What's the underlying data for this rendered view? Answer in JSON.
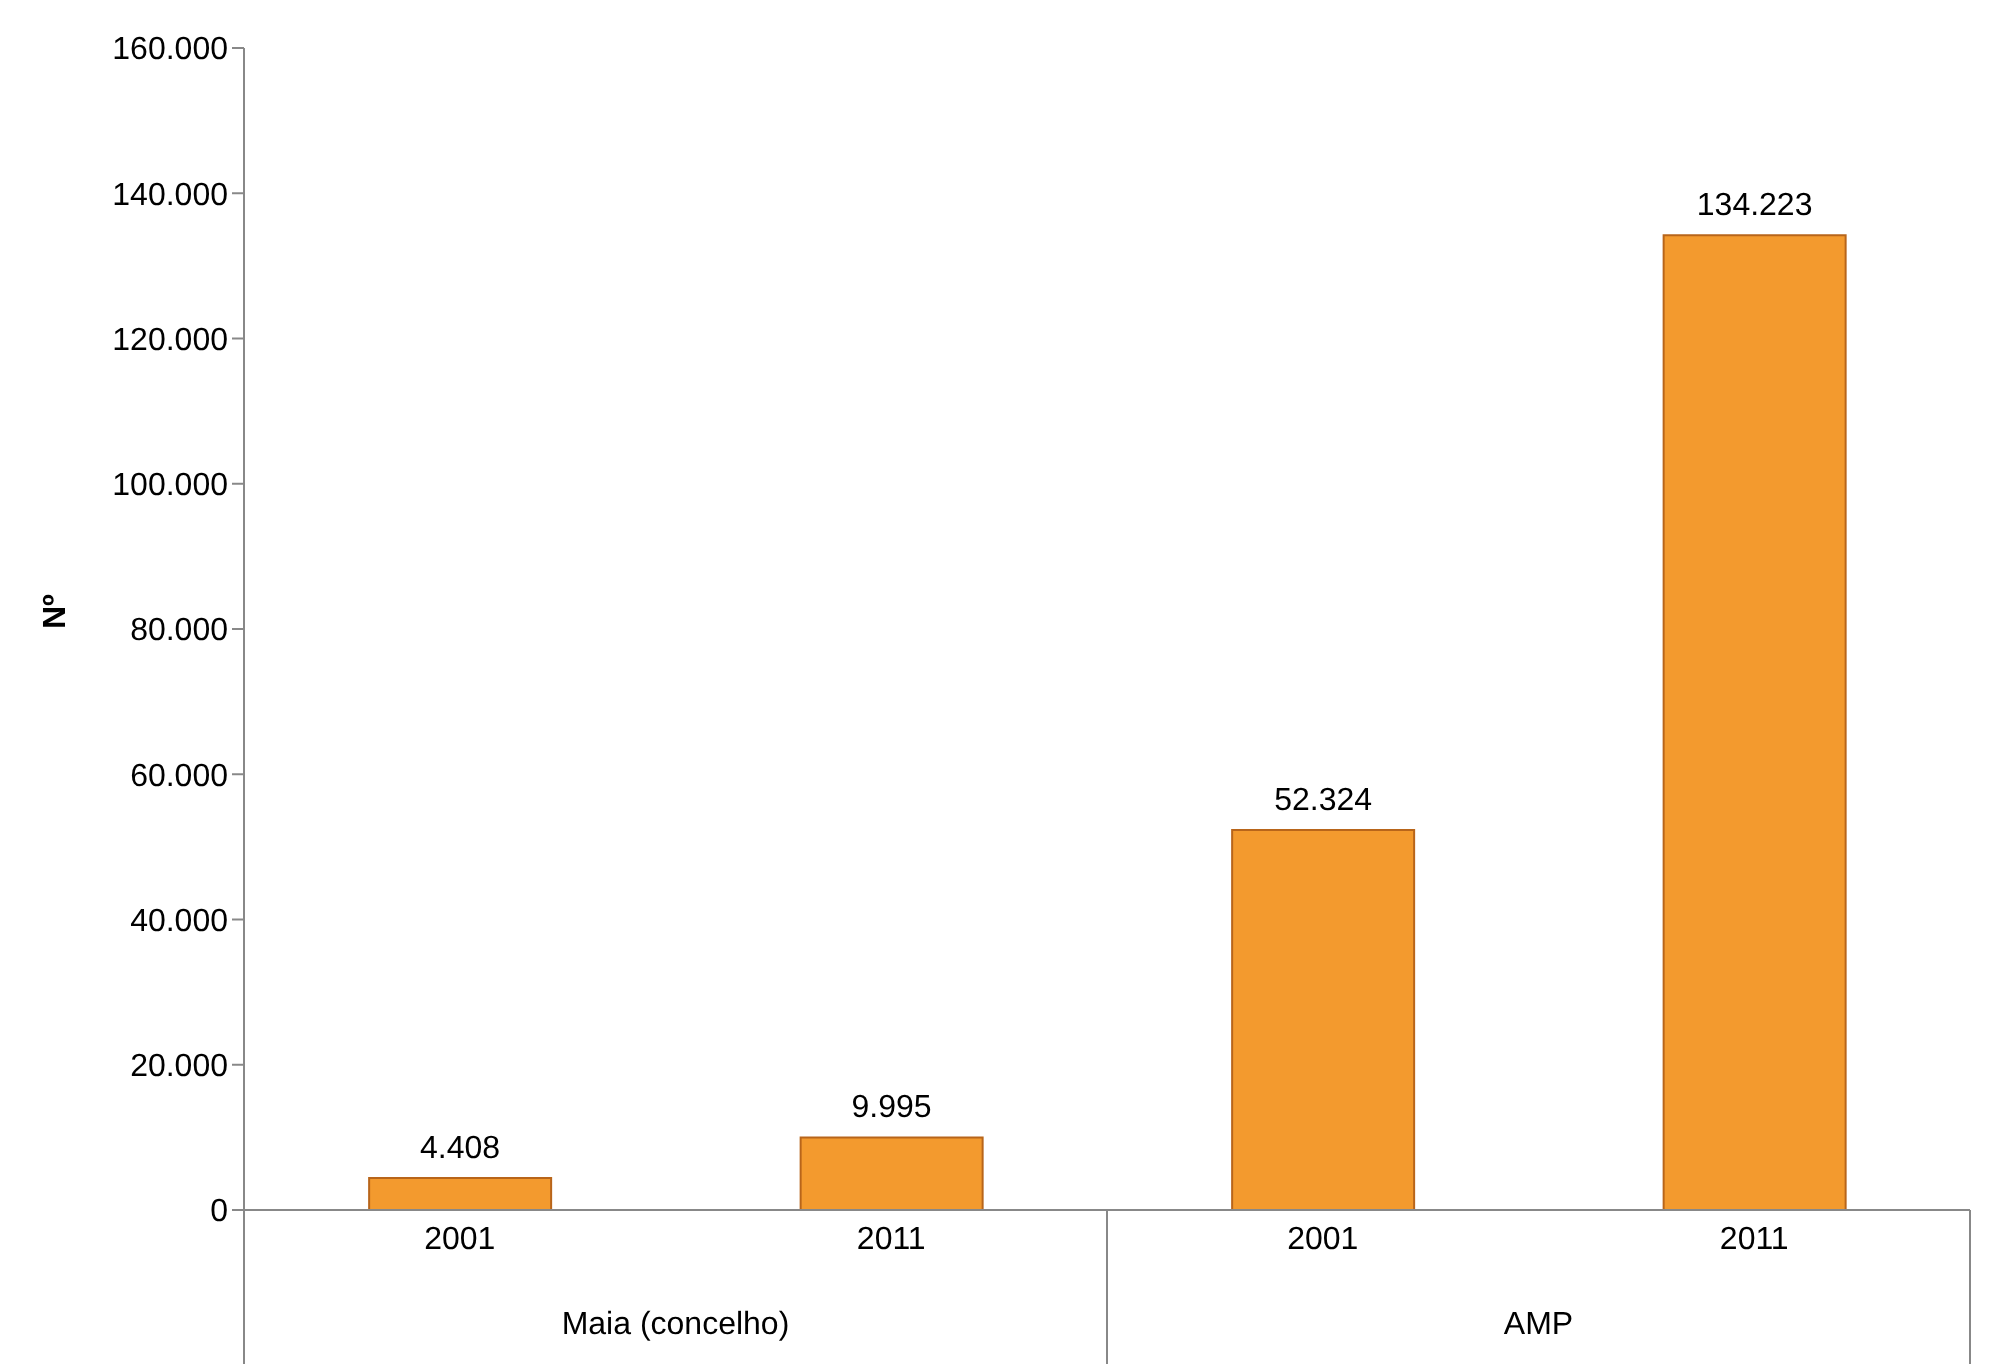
{
  "chart_data": {
    "type": "bar",
    "ylabel": "Nº",
    "categories": [
      "2001",
      "2011",
      "2001",
      "2011"
    ],
    "values": [
      4408,
      9995,
      52324,
      134223
    ],
    "value_labels": [
      "4.408",
      "9.995",
      "52.324",
      "134.223"
    ],
    "color": "#f39a2e",
    "ylim": [
      0,
      160000
    ],
    "yticks": [
      {
        "value": 0,
        "label": "0"
      },
      {
        "value": 20000,
        "label": "20.000"
      },
      {
        "value": 40000,
        "label": "40.000"
      },
      {
        "value": 60000,
        "label": "60.000"
      },
      {
        "value": 80000,
        "label": "80.000"
      },
      {
        "value": 100000,
        "label": "100.000"
      },
      {
        "value": 120000,
        "label": "120.000"
      },
      {
        "value": 140000,
        "label": "140.000"
      },
      {
        "value": 160000,
        "label": "160.000"
      }
    ],
    "annotations": [
      "Maia (concelho)",
      "AMP"
    ],
    "grid": false,
    "legend": false
  }
}
